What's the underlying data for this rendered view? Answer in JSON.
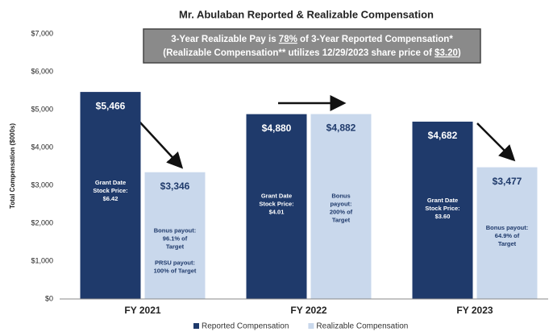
{
  "chart_data": {
    "type": "bar",
    "title": "Mr. Abulaban Reported & Realizable Compensation",
    "ylabel": "Total Compensation ($000s)",
    "annotation": [
      [
        {
          "text": "3-Year Realizable Pay is "
        },
        {
          "text": "78%",
          "underline": true
        },
        {
          "text": " of 3-Year Reported Compensation*"
        }
      ],
      [
        {
          "text": "(Realizable Compensation** utilizes 12/29/2023 share price of "
        },
        {
          "text": "$3.20",
          "underline": true
        },
        {
          "text": ")"
        }
      ]
    ],
    "categories": [
      "FY 2021",
      "FY 2022",
      "FY 2023"
    ],
    "series": [
      {
        "name": "Reported Compensation",
        "color": "#1f3a6b",
        "values": [
          5466,
          4880,
          4682
        ],
        "value_labels": [
          "$5,466",
          "$4,880",
          "$4,682"
        ],
        "notes": [
          [
            [
              "Grant Date",
              "Stock Price:",
              "$6.42"
            ]
          ],
          [
            [
              "Grant Date",
              "Stock Price:",
              "$4.01"
            ]
          ],
          [
            [
              "Grant Date",
              "Stock Price:",
              "$3.60"
            ]
          ]
        ]
      },
      {
        "name": "Realizable Compensation",
        "color": "#c9d8ec",
        "values": [
          3346,
          4882,
          3477
        ],
        "value_labels": [
          "$3,346",
          "$4,882",
          "$3,477"
        ],
        "notes": [
          [
            [
              "Bonus payout:",
              "96.1% of",
              "Target"
            ],
            [
              "PRSU payout:",
              "100% of Target"
            ]
          ],
          [
            [
              "Bonus",
              "payout:",
              "200% of",
              "Target"
            ]
          ],
          [
            [
              "Bonus payout:",
              "64.9% of",
              "Target"
            ]
          ]
        ]
      }
    ],
    "ylim": [
      0,
      7000
    ],
    "yticks": [
      {
        "value": 0,
        "label": "$0"
      },
      {
        "value": 1000,
        "label": "$1,000"
      },
      {
        "value": 2000,
        "label": "$2,000"
      },
      {
        "value": 3000,
        "label": "$3,000"
      },
      {
        "value": 4000,
        "label": "$4,000"
      },
      {
        "value": 5000,
        "label": "$5,000"
      },
      {
        "value": 6000,
        "label": "$6,000"
      },
      {
        "value": 7000,
        "label": "$7,000"
      }
    ],
    "grid": false,
    "legend": "bottom"
  }
}
